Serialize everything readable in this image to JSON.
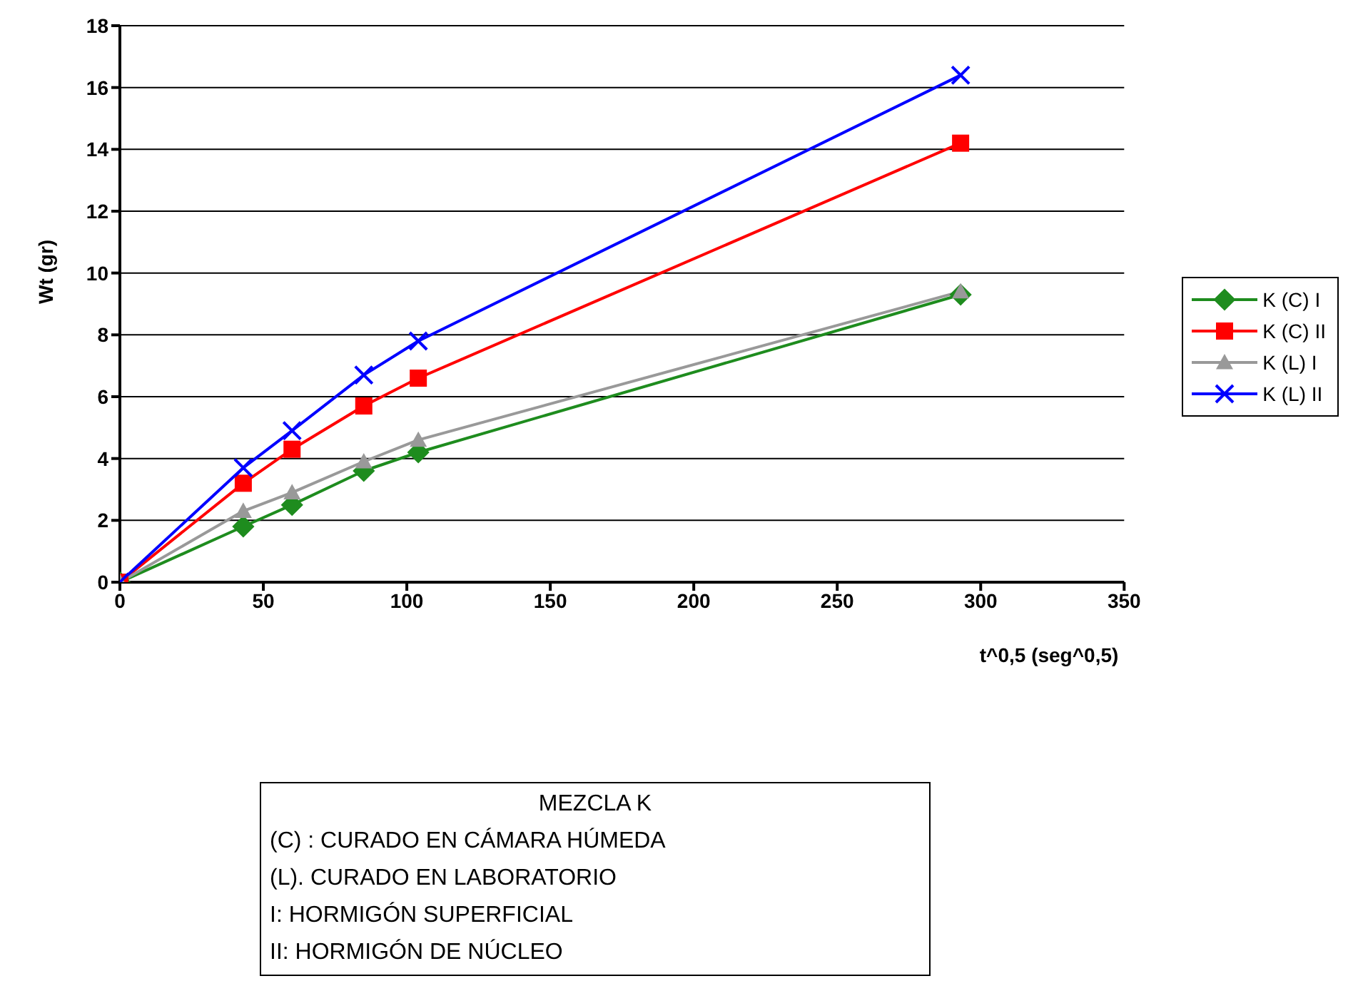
{
  "chart_data": {
    "type": "line",
    "xlabel": "t^0,5 (seg^0,5)",
    "ylabel": "Wt (gr)",
    "x": [
      0,
      43,
      60,
      85,
      104,
      293
    ],
    "series": [
      {
        "name": "K (C) I",
        "color": "#1e8c1e",
        "marker": "diamond",
        "values": [
          0,
          1.8,
          2.5,
          3.6,
          4.2,
          9.3
        ]
      },
      {
        "name": "K (C) II",
        "color": "#ff0000",
        "marker": "square",
        "values": [
          0,
          3.2,
          4.3,
          5.7,
          6.6,
          14.2
        ]
      },
      {
        "name": "K (L) I",
        "color": "#999999",
        "marker": "triangle",
        "values": [
          0,
          2.3,
          2.9,
          3.9,
          4.6,
          9.4
        ]
      },
      {
        "name": "K (L) II",
        "color": "#0000ff",
        "marker": "cross",
        "values": [
          0,
          3.7,
          4.9,
          6.7,
          7.8,
          16.4
        ]
      }
    ],
    "xlim": [
      0,
      350
    ],
    "xticks": [
      0,
      50,
      100,
      150,
      200,
      250,
      300,
      350
    ],
    "ylim": [
      0,
      18
    ],
    "yticks": [
      0,
      2,
      4,
      6,
      8,
      10,
      12,
      14,
      16,
      18
    ],
    "grid": "y",
    "legend": "right",
    "annotations": [
      "MEZCLA K",
      "(C) : CURADO EN CÁMARA HÚMEDA",
      "(L). CURADO EN LABORATORIO",
      "I:  HORMIGÓN SUPERFICIAL",
      "II: HORMIGÓN DE NÚCLEO"
    ]
  }
}
